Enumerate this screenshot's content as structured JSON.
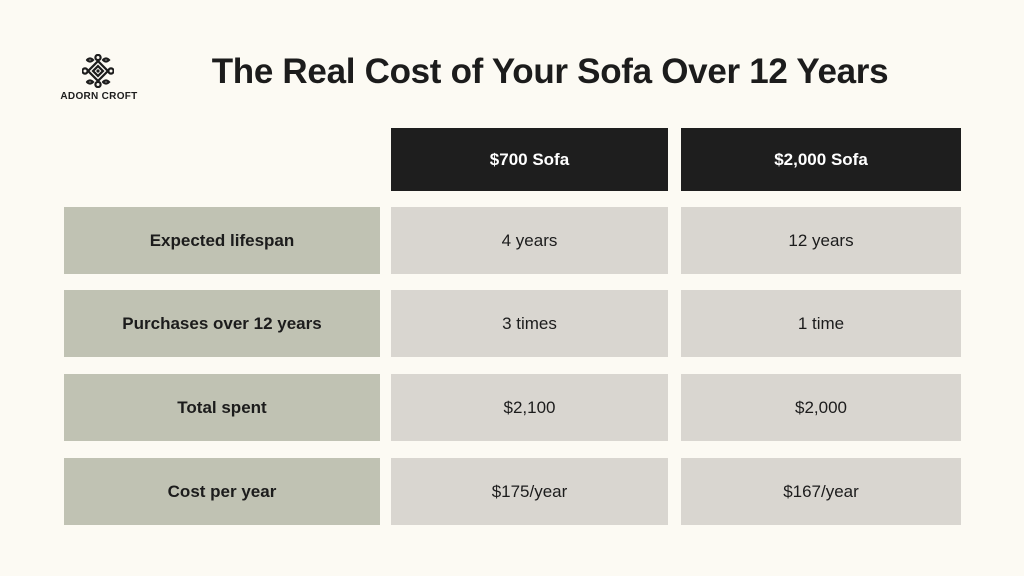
{
  "brand": {
    "name": "ADORN CROFT",
    "logo_icon": "ornamental-knot-icon"
  },
  "title": "The Real Cost of Your Sofa Over 12 Years",
  "table": {
    "columns": [
      "$700 Sofa",
      "$2,000 Sofa"
    ],
    "rows": [
      {
        "label": "Expected lifespan",
        "values": [
          "4 years",
          "12 years"
        ]
      },
      {
        "label": "Purchases over 12 years",
        "values": [
          "3 times",
          "1 time"
        ]
      },
      {
        "label": "Total spent",
        "values": [
          "$2,100",
          "$2,000"
        ]
      },
      {
        "label": "Cost per year",
        "values": [
          "$175/year",
          "$167/year"
        ]
      }
    ]
  },
  "colors": {
    "background": "#fcfaf3",
    "header_fill": "#1e1e1e",
    "row_label_fill": "#c0c2b3",
    "value_fill": "#d9d6d0"
  }
}
